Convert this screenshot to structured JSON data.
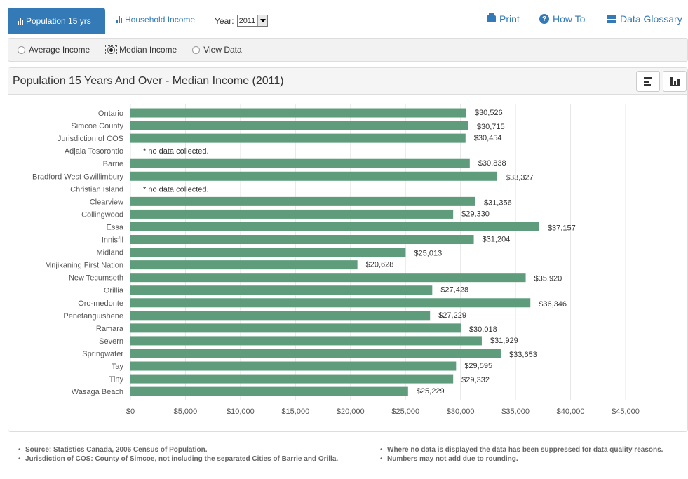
{
  "nav": {
    "tab_active": "Population 15 yrs",
    "tab_household": "Household Income",
    "year_label": "Year:",
    "year_value": "2011",
    "print": "Print",
    "howto": "How To",
    "glossary": "Data Glossary"
  },
  "options": {
    "average": "Average Income",
    "median": "Median Income",
    "view_data": "View Data"
  },
  "panel": {
    "title": "Population 15 Years And Over - Median Income (2011)"
  },
  "colors": {
    "bar": "#5e9c7b",
    "accent": "#337ab7"
  },
  "chart_data": {
    "type": "bar",
    "orientation": "horizontal",
    "categories": [
      "Ontario",
      "Simcoe County",
      "Jurisdiction of COS",
      "Adjala Tosorontio",
      "Barrie",
      "Bradford West Gwillimbury",
      "Christian Island",
      "Clearview",
      "Collingwood",
      "Essa",
      "Innisfil",
      "Midland",
      "Mnjikaning First Nation",
      "New Tecumseth",
      "Orillia",
      "Oro-medonte",
      "Penetanguishene",
      "Ramara",
      "Severn",
      "Springwater",
      "Tay",
      "Tiny",
      "Wasaga Beach"
    ],
    "values": [
      30526,
      30715,
      30454,
      null,
      30838,
      33327,
      null,
      31356,
      29330,
      37157,
      31204,
      25013,
      20628,
      35920,
      27428,
      36346,
      27229,
      30018,
      31929,
      33653,
      29595,
      29332,
      25229
    ],
    "value_labels": [
      "$30,526",
      "$30,715",
      "$30,454",
      "",
      "$30,838",
      "$33,327",
      "",
      "$31,356",
      "$29,330",
      "$37,157",
      "$31,204",
      "$25,013",
      "$20,628",
      "$35,920",
      "$27,428",
      "$36,346",
      "$27,229",
      "$30,018",
      "$31,929",
      "$33,653",
      "$29,595",
      "$29,332",
      "$25,229"
    ],
    "no_data_label": "* no data collected.",
    "xlim": [
      0,
      45000
    ],
    "x_ticks": [
      0,
      5000,
      10000,
      15000,
      20000,
      25000,
      30000,
      35000,
      40000,
      45000
    ],
    "x_tick_labels": [
      "$0",
      "$5,000",
      "$10,000",
      "$15,000",
      "$20,000",
      "$25,000",
      "$30,000",
      "$35,000",
      "$40,000",
      "$45,000"
    ],
    "grid": true,
    "legend": "none"
  },
  "notes": {
    "left": [
      "Source: Statistics Canada, 2006 Census of Population.",
      "Jurisdiction of COS: County of Simcoe, not including the separated Cities of Barrie and Orilla."
    ],
    "right": [
      "Where no data is displayed the data has been suppressed for data quality reasons.",
      "Numbers may not add due to rounding."
    ]
  }
}
